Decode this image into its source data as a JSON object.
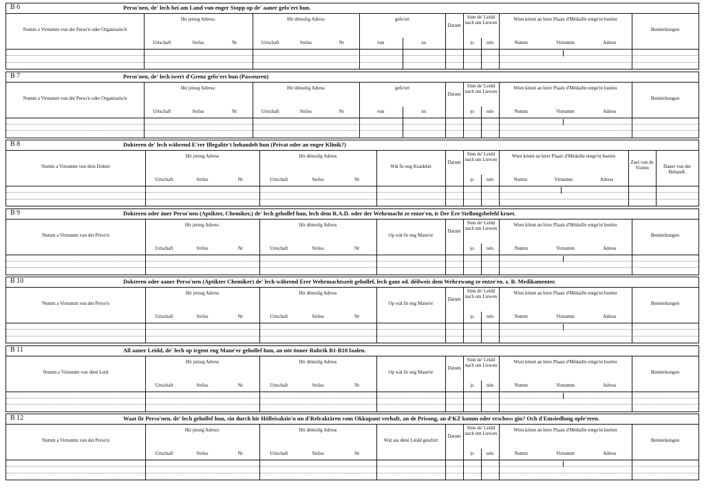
{
  "sections": [
    {
      "code": "B 6",
      "title": "Perso'nen, de' lech hei am Land vun enger Stopp op de' aaner gefo'ert hun.",
      "columns": [
        {
          "label": "Numm a Virnumm vun der Perso'n oder Organisatio'n"
        },
        {
          "label": "Hir jetzeg Adress:",
          "sub": [
            "Urtschaft",
            "Strôss",
            "Nr"
          ]
        },
        {
          "label": "Hir démolig Adress",
          "sub": [
            "Urtschaft",
            "Strôss",
            "Nr"
          ]
        },
        {
          "label": "gefo'ert",
          "sub": [
            "vun",
            "no"
          ]
        },
        {
          "label": "Datum"
        },
        {
          "label": "Sinn de' Leidd nach um Liewen",
          "sub": [
            "jo",
            "nén"
          ]
        },
        {
          "label": "Wien könnt an hirer Plaatz d'Médaille entge'nt huelen",
          "sub": [
            "Numm",
            "Virnumm",
            "Adress"
          ]
        },
        {
          "label": "Bemierkungen"
        }
      ]
    },
    {
      "code": "B 7",
      "title": "Perso'nen, de' lech iwert d'Grenz gefo'ert hun (Passeuren)",
      "columns": [
        {
          "label": "Numm a Virnumm vun der Perso'n oder Organisatio'n"
        },
        {
          "label": "Hir jetzeg Adress:",
          "sub": [
            "Urtschaft",
            "Strôss",
            "Nr"
          ]
        },
        {
          "label": "Hir démolig Adress",
          "sub": [
            "Urtschaft",
            "Strôss",
            "Nr"
          ]
        },
        {
          "label": "gefo'ert",
          "sub": [
            "vun",
            "no"
          ]
        },
        {
          "label": "Datum"
        },
        {
          "label": "Sinn de' Leidd nach um Liewen",
          "sub": [
            "jo",
            "nén"
          ]
        },
        {
          "label": "Wien könnt an hirer Plaatz d'Médaille entge'nt huelen",
          "sub": [
            "Numm",
            "Virnumm",
            "Adress"
          ]
        },
        {
          "label": "Bemierkungen"
        }
      ]
    },
    {
      "code": "B 8",
      "title": "Dokteren de' lech während E'rer Illegalite't behandelt hun (Privat oder an enger Klinik?)",
      "columns": [
        {
          "label": "Numm a Virnumm vun dem Dokter"
        },
        {
          "label": "Hir jetzeg Adress",
          "sub": [
            "Urtschaft",
            "Strôss",
            "Nr"
          ]
        },
        {
          "label": "Hir démolig Adress",
          "sub": [
            "Urtschaft",
            "Strôss",
            "Nr"
          ]
        },
        {
          "label": "Wät fir eng Krankhét"
        },
        {
          "label": "Datum"
        },
        {
          "label": "Sinn de' Leidd nach um Liewen",
          "sub": [
            "jo",
            "nén"
          ]
        },
        {
          "label": "Wien könnt an hirer Plaatz d'Médaille entge'nt huelen",
          "sub": [
            "Numm",
            "Virnumm",
            "Adress"
          ]
        },
        {
          "label": "Zuel vun de Visiten"
        },
        {
          "label": "Dauer vun der Behandl."
        }
      ]
    },
    {
      "code": "B 9",
      "title": "Dokteren oder äner Perso'nen (Aptikter, Chemiker,) de' lech gehollef hun, lech dem R.A.D. oder der Wehrmacht ze entze'en, ir Der Ere Stellongsbefehl kruet.",
      "columns": [
        {
          "label": "Numm a Virnumm vun der Perso'n"
        },
        {
          "label": "Hir jetzeg Adress:",
          "sub": [
            "Urtschaft",
            "Strôss",
            "Nr"
          ]
        },
        {
          "label": "Hir démolig Adress",
          "sub": [
            "Urtschaft",
            "Strôss",
            "Nr"
          ]
        },
        {
          "label": "Op wät fir eng Mane'er"
        },
        {
          "label": "Datum"
        },
        {
          "label": "Sinn de' Leidd nach um Liewen",
          "sub": [
            "jo",
            "nén"
          ]
        },
        {
          "label": "Wien könnt an hirer Plaatz d'Médaille entge'nt huelen",
          "sub": [
            "Numm",
            "Virnumm",
            "Adress"
          ]
        },
        {
          "label": "Bemierkungen"
        }
      ]
    },
    {
      "code": "B 10",
      "title": "Dokteren oder aaner Perso'nen (Aptikter Chemiker) de' lech während Erer Wehrmachtszeit gehollef, lech ganz od. déilweis dem Wehrzwang ze entze'en. z. B. Medikamenter.",
      "columns": [
        {
          "label": "Numm a Virnumm vun der Perso'n"
        },
        {
          "label": "Hir jetzeg Adress",
          "sub": [
            "Urtschaft",
            "Strôss",
            "Nr"
          ]
        },
        {
          "label": "Hir démolig Adress",
          "sub": [
            "Urtschaft",
            "Strôss",
            "Nr"
          ]
        },
        {
          "label": "Op wät fir eng Mane'er"
        },
        {
          "label": "Datum"
        },
        {
          "label": "Sinn de' Leidd nach um Liewen",
          "sub": [
            "jo",
            "nén"
          ]
        },
        {
          "label": "Wien könnt an hirer Plaatz d'Médaille entge'nt huelen",
          "sub": [
            "Numm",
            "Virnumm",
            "Adress"
          ]
        },
        {
          "label": "Bemierkungen"
        }
      ]
    },
    {
      "code": "B 11",
      "title": "All aaner Leidd, de' lech op irgent eng Mane'er gehollef hun, an nöt önner Rubrik B1-B10 faalen.",
      "columns": [
        {
          "label": "Numm a Virnumm vun déné Leid"
        },
        {
          "label": "Hir jetzeg Adress",
          "sub": [
            "Urtschaft",
            "Strôss",
            "Nr"
          ]
        },
        {
          "label": "Hir démolig Adress",
          "sub": [
            "Urtschaft",
            "Strôss",
            "Nr"
          ]
        },
        {
          "label": "Op wät fir eng Mane'er"
        },
        {
          "label": "Datum"
        },
        {
          "label": "Sinn de' Leidd nach um Liewen",
          "sub": [
            "jo",
            "nén"
          ]
        },
        {
          "label": "Wien könnt an hirer Plaatz d'Médaille entge'nt huelen",
          "sub": [
            "Numm",
            "Virnumm",
            "Adress"
          ]
        },
        {
          "label": "Bemierkungen"
        }
      ]
    },
    {
      "code": "B 12",
      "title": "Waat fir Perso'nen, de' lech gehollef hun, sin durch hir Hölleisaktio'n un d'Refraktären vom Okkupant verhaft, an de Prisong, an d'KZ komm oder erschoss gin? Och d'Emsiedlung opfe'eren.",
      "columns": [
        {
          "label": "Numm a Virnumm vun der Perso'n"
        },
        {
          "label": "Hir jetzeg Adress:",
          "sub": [
            "Urtschaft",
            "Strôss",
            "Nr"
          ]
        },
        {
          "label": "Hir démolig Adress",
          "sub": [
            "Urtschaft",
            "Strôss",
            "Nr"
          ]
        },
        {
          "label": "Wät ass déné Leidd geschitt"
        },
        {
          "label": "Datum"
        },
        {
          "label": "Sinn de' Leidd nach um Liewen",
          "sub": [
            "jo",
            "nén"
          ]
        },
        {
          "label": "Wien könnt an hirer Plaatz d'Médaille entge'nt huelen",
          "sub": [
            "Numm",
            "Virnumm",
            "Adress"
          ]
        },
        {
          "label": "Bemierkungen"
        }
      ]
    }
  ]
}
